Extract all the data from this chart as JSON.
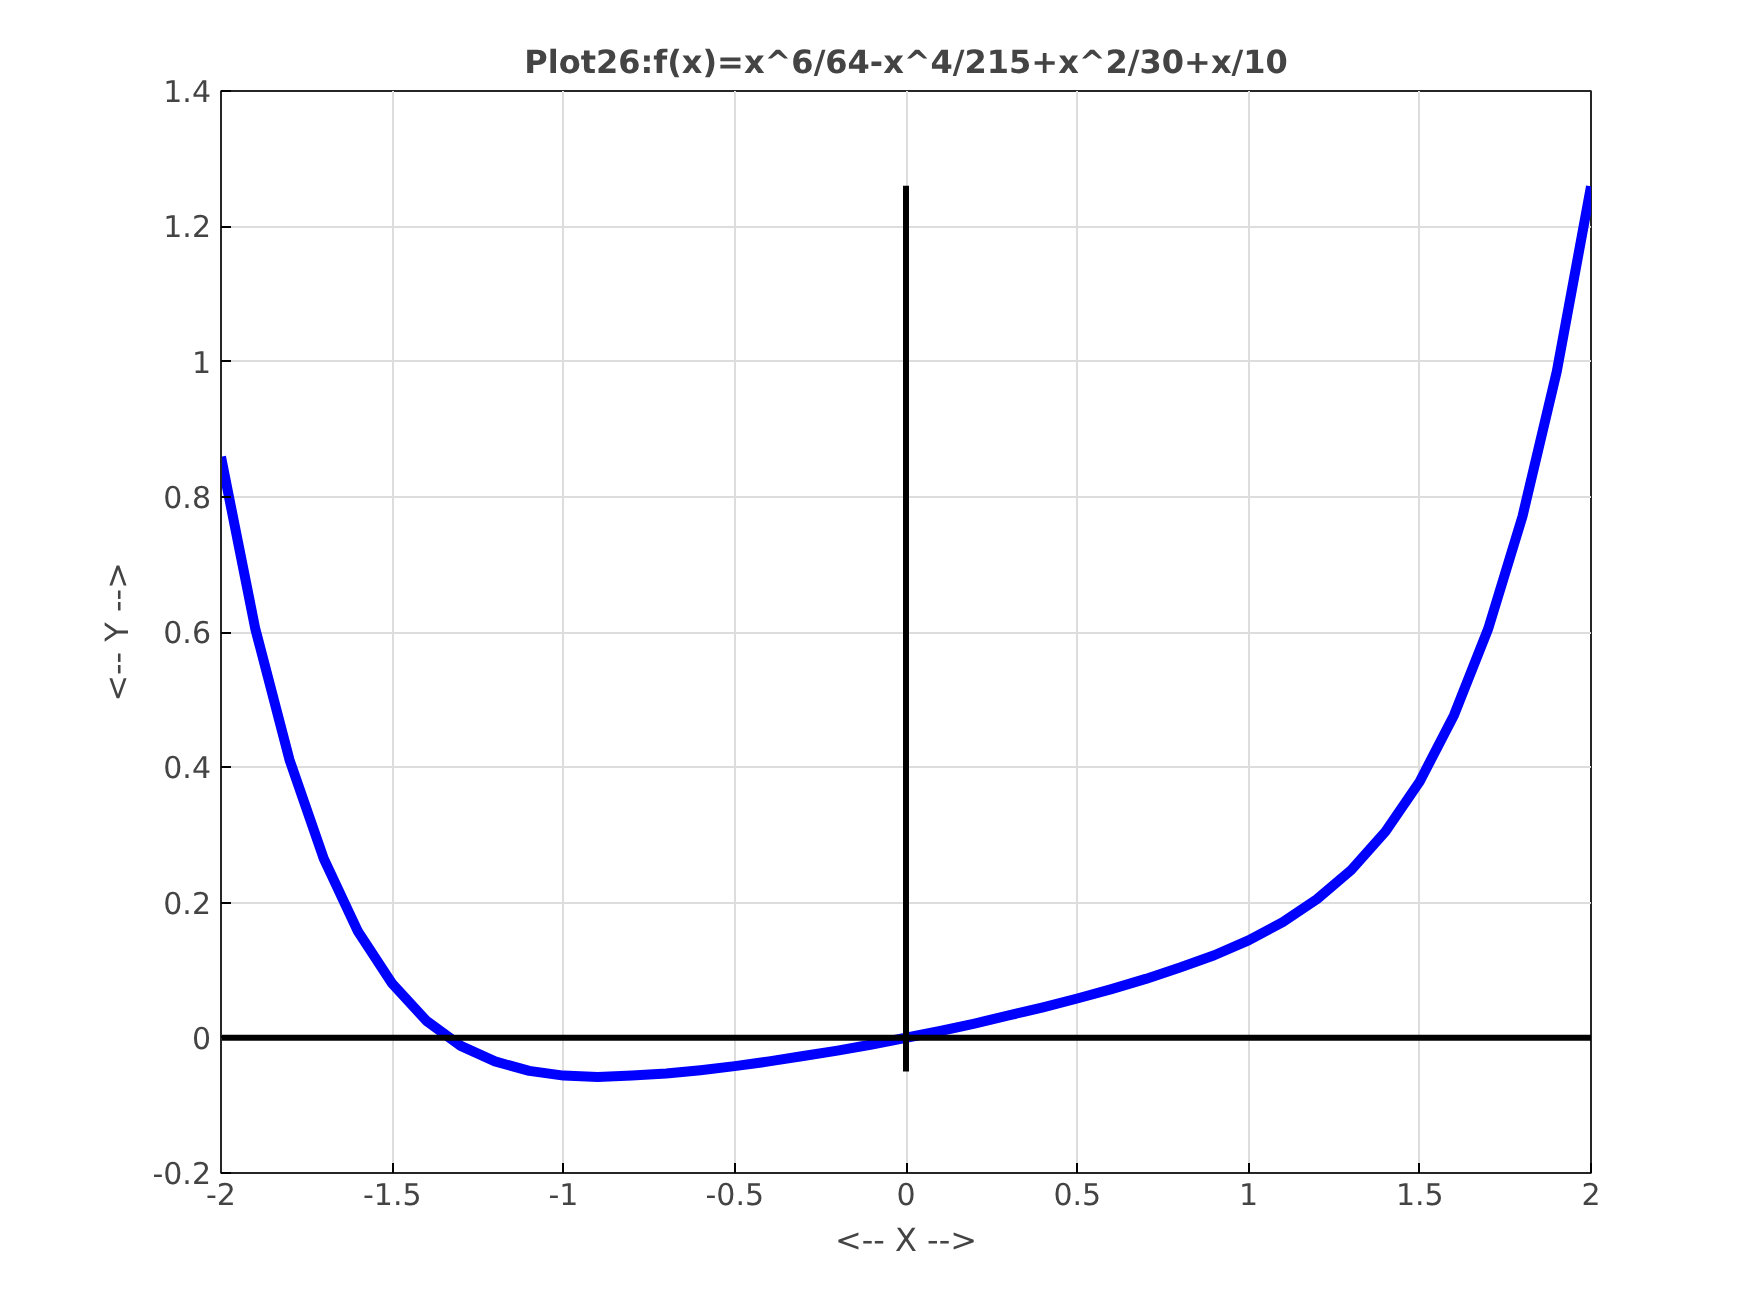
{
  "chart_data": {
    "type": "line",
    "title": "Plot26:f(x)=x^6/64-x^4/215+x^2/30+x/10",
    "xlabel": "<-- X -->",
    "ylabel": "<-- Y -->",
    "xlim": [
      -2,
      2
    ],
    "ylim": [
      -0.2,
      1.4
    ],
    "xticks": [
      -2,
      -1.5,
      -1,
      -0.5,
      0,
      0.5,
      1,
      1.5,
      2
    ],
    "yticks": [
      -0.2,
      0,
      0.2,
      0.4,
      0.6,
      0.8,
      1,
      1.2,
      1.4
    ],
    "grid": true,
    "line_style": "solid",
    "series": [
      {
        "color": "#0000ff",
        "x": [
          -2,
          -1.9,
          -1.8,
          -1.7,
          -1.6,
          -1.5,
          -1.4,
          -1.3,
          -1.2,
          -1.1,
          -1,
          -0.9,
          -0.8,
          -0.7,
          -0.6,
          -0.5,
          -0.4,
          -0.3,
          -0.2,
          -0.1,
          0,
          0.1,
          0.2,
          0.3,
          0.4,
          0.5,
          0.6,
          0.7,
          0.8,
          0.9,
          1,
          1.1,
          1.2,
          1.3,
          1.4,
          1.5,
          1.6,
          1.7,
          1.8,
          1.9,
          2
        ],
        "values": [
          0.859,
          0.605,
          0.411,
          0.265,
          0.157,
          0.08,
          0.025,
          -0.012,
          -0.035,
          -0.049,
          -0.056,
          -0.058,
          -0.056,
          -0.053,
          -0.048,
          -0.042,
          -0.035,
          -0.027,
          -0.019,
          -0.01,
          0,
          0.01,
          0.021,
          0.033,
          0.045,
          0.058,
          0.072,
          0.087,
          0.104,
          0.122,
          0.144,
          0.171,
          0.205,
          0.248,
          0.305,
          0.379,
          0.477,
          0.605,
          0.771,
          0.985,
          1.259
        ]
      },
      {
        "color": "#000000",
        "x": [
          -2,
          2
        ],
        "values": [
          0,
          0
        ]
      },
      {
        "color": "#000000",
        "x": [
          0,
          0
        ],
        "values": [
          -0.05,
          1.26
        ]
      }
    ]
  }
}
